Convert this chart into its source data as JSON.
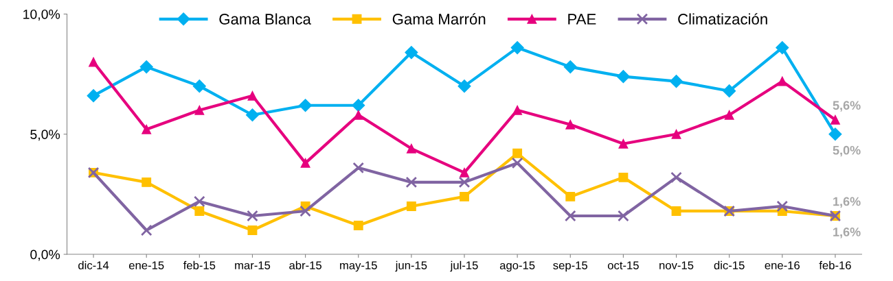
{
  "chart_data": {
    "type": "line",
    "categories": [
      "dic-14",
      "ene-15",
      "feb-15",
      "mar-15",
      "abr-15",
      "may-15",
      "jun-15",
      "jul-15",
      "ago-15",
      "sep-15",
      "oct-15",
      "nov-15",
      "dic-15",
      "ene-16",
      "feb-16"
    ],
    "series": [
      {
        "name": "Gama Blanca",
        "color": "#00b0f0",
        "marker": "diamond",
        "values": [
          6.6,
          7.8,
          7.0,
          5.8,
          6.2,
          6.2,
          8.4,
          7.0,
          8.6,
          7.8,
          7.4,
          7.2,
          6.8,
          8.6,
          5.0
        ],
        "value_labels": [
          null,
          null,
          null,
          null,
          null,
          null,
          null,
          null,
          null,
          null,
          null,
          null,
          null,
          null,
          "5,0%"
        ]
      },
      {
        "name": "Gama Marrón",
        "color": "#ffc000",
        "marker": "square",
        "values": [
          3.4,
          3.0,
          1.8,
          1.0,
          2.0,
          1.2,
          2.0,
          2.4,
          4.2,
          2.4,
          3.2,
          1.8,
          1.8,
          1.8,
          1.6
        ],
        "value_labels": [
          null,
          null,
          null,
          null,
          null,
          null,
          null,
          null,
          null,
          null,
          null,
          null,
          null,
          null,
          "1,6%"
        ]
      },
      {
        "name": "PAE",
        "color": "#e6007e",
        "marker": "triangle",
        "values": [
          8.0,
          5.2,
          6.0,
          6.6,
          3.8,
          5.8,
          4.4,
          3.4,
          6.0,
          5.4,
          4.6,
          5.0,
          5.8,
          7.2,
          5.6
        ],
        "value_labels": [
          null,
          null,
          null,
          null,
          null,
          null,
          null,
          null,
          null,
          null,
          null,
          null,
          null,
          null,
          "5,6%"
        ]
      },
      {
        "name": "Climatización",
        "color": "#8064a2",
        "marker": "cross",
        "values": [
          3.4,
          1.0,
          2.2,
          1.6,
          1.8,
          3.6,
          3.0,
          3.0,
          3.8,
          1.6,
          1.6,
          3.2,
          1.8,
          2.0,
          1.6
        ],
        "value_labels": [
          null,
          null,
          null,
          null,
          null,
          null,
          null,
          null,
          null,
          null,
          null,
          null,
          null,
          null,
          "1,6%"
        ]
      }
    ],
    "ylim": [
      0,
      10
    ],
    "yticks": [
      {
        "value": 0,
        "label": "0,0%"
      },
      {
        "value": 5,
        "label": "5,0%"
      },
      {
        "value": 10,
        "label": "10,0%"
      }
    ],
    "grid": false,
    "legend": "top",
    "line_style": "solid"
  }
}
